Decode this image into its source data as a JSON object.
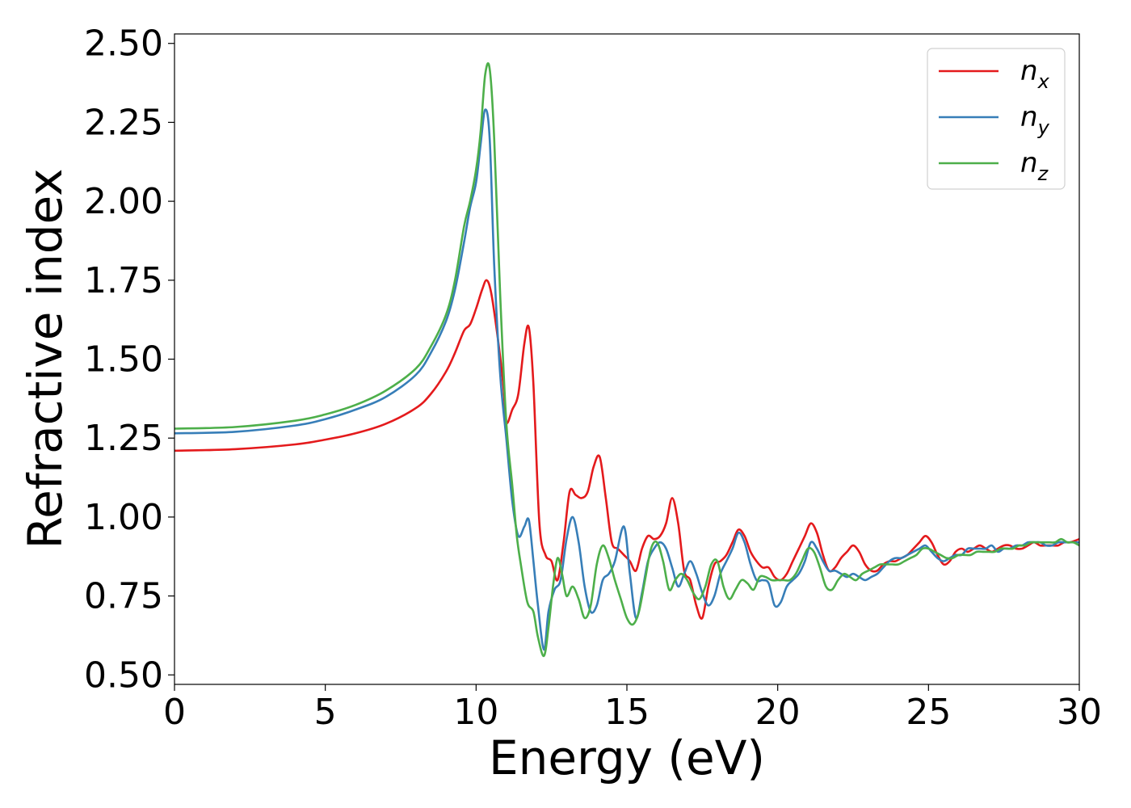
{
  "chart_data": {
    "type": "line",
    "xlabel": "Energy (eV)",
    "ylabel": "Refractive index",
    "xlim": [
      0,
      30
    ],
    "ylim": [
      0.47,
      2.53
    ],
    "xticks": [
      0,
      5,
      10,
      15,
      20,
      25,
      30
    ],
    "xtick_labels": [
      "0",
      "5",
      "10",
      "15",
      "20",
      "25",
      "30"
    ],
    "yticks": [
      0.5,
      0.75,
      1.0,
      1.25,
      1.5,
      1.75,
      2.0,
      2.25,
      2.5
    ],
    "ytick_labels": [
      "0.50",
      "0.75",
      "1.00",
      "1.25",
      "1.50",
      "1.75",
      "2.00",
      "2.25",
      "2.50"
    ],
    "grid": false,
    "legend_position": "top-right",
    "series": [
      {
        "name": "n_x",
        "legend_base": "n",
        "legend_sub": "x",
        "color": "#e41a1c",
        "x": [
          0,
          2,
          4,
          5,
          6,
          7,
          8,
          8.5,
          9,
          9.3,
          9.6,
          9.8,
          10.0,
          10.2,
          10.35,
          10.5,
          10.7,
          10.9,
          11.0,
          11.2,
          11.4,
          11.6,
          11.75,
          11.9,
          12.1,
          12.3,
          12.5,
          12.7,
          12.9,
          13.1,
          13.3,
          13.5,
          13.7,
          13.9,
          14.1,
          14.3,
          14.5,
          14.7,
          14.9,
          15.1,
          15.3,
          15.5,
          15.7,
          15.9,
          16.1,
          16.3,
          16.5,
          16.7,
          16.9,
          17.1,
          17.3,
          17.5,
          17.7,
          17.9,
          18.1,
          18.3,
          18.5,
          18.7,
          18.9,
          19.1,
          19.3,
          19.5,
          19.7,
          19.9,
          20.1,
          20.3,
          20.5,
          20.7,
          20.9,
          21.1,
          21.3,
          21.5,
          21.7,
          21.9,
          22.1,
          22.3,
          22.5,
          22.7,
          22.9,
          23.1,
          23.3,
          23.5,
          23.7,
          23.9,
          24.1,
          24.3,
          24.5,
          24.7,
          24.9,
          25.1,
          25.3,
          25.5,
          25.7,
          25.9,
          26.1,
          26.3,
          26.5,
          26.7,
          26.9,
          27.1,
          27.3,
          27.5,
          27.7,
          27.9,
          28.1,
          28.3,
          28.5,
          28.7,
          28.9,
          29.1,
          29.3,
          29.5,
          29.7,
          30
        ],
        "y": [
          1.21,
          1.215,
          1.23,
          1.245,
          1.265,
          1.295,
          1.345,
          1.39,
          1.46,
          1.52,
          1.59,
          1.61,
          1.66,
          1.72,
          1.75,
          1.71,
          1.58,
          1.42,
          1.3,
          1.34,
          1.39,
          1.55,
          1.6,
          1.42,
          0.98,
          0.88,
          0.86,
          0.8,
          0.92,
          1.08,
          1.07,
          1.06,
          1.08,
          1.16,
          1.19,
          1.06,
          0.92,
          0.9,
          0.88,
          0.86,
          0.83,
          0.9,
          0.94,
          0.93,
          0.94,
          0.98,
          1.06,
          0.98,
          0.83,
          0.8,
          0.72,
          0.68,
          0.78,
          0.85,
          0.86,
          0.88,
          0.92,
          0.96,
          0.94,
          0.89,
          0.86,
          0.84,
          0.84,
          0.81,
          0.8,
          0.82,
          0.86,
          0.9,
          0.94,
          0.98,
          0.95,
          0.88,
          0.83,
          0.84,
          0.87,
          0.89,
          0.91,
          0.89,
          0.85,
          0.83,
          0.83,
          0.85,
          0.86,
          0.86,
          0.87,
          0.88,
          0.9,
          0.92,
          0.94,
          0.92,
          0.88,
          0.85,
          0.86,
          0.89,
          0.9,
          0.89,
          0.9,
          0.91,
          0.9,
          0.89,
          0.9,
          0.91,
          0.91,
          0.9,
          0.9,
          0.91,
          0.92,
          0.91,
          0.91,
          0.91,
          0.91,
          0.92,
          0.92,
          0.93
        ]
      },
      {
        "name": "n_y",
        "legend_base": "n",
        "legend_sub": "y",
        "color": "#377eb8",
        "x": [
          0,
          2,
          4,
          5,
          6,
          7,
          8,
          8.5,
          9,
          9.3,
          9.6,
          9.8,
          10.0,
          10.15,
          10.3,
          10.45,
          10.6,
          10.8,
          11.0,
          11.2,
          11.4,
          11.6,
          11.75,
          11.9,
          12.05,
          12.25,
          12.4,
          12.6,
          12.8,
          13.0,
          13.2,
          13.4,
          13.6,
          13.8,
          14.0,
          14.2,
          14.4,
          14.6,
          14.9,
          15.1,
          15.3,
          15.5,
          15.7,
          15.9,
          16.1,
          16.3,
          16.5,
          16.7,
          16.9,
          17.1,
          17.3,
          17.5,
          17.7,
          17.9,
          18.1,
          18.3,
          18.5,
          18.7,
          18.9,
          19.1,
          19.3,
          19.5,
          19.7,
          19.9,
          20.1,
          20.3,
          20.5,
          20.7,
          20.9,
          21.1,
          21.3,
          21.5,
          21.7,
          21.9,
          22.1,
          22.3,
          22.5,
          22.7,
          22.9,
          23.1,
          23.3,
          23.5,
          23.7,
          23.9,
          24.1,
          24.3,
          24.5,
          24.7,
          24.9,
          25.1,
          25.3,
          25.5,
          25.7,
          25.9,
          26.1,
          26.3,
          26.5,
          26.7,
          26.9,
          27.1,
          27.3,
          27.5,
          27.7,
          27.9,
          28.1,
          28.3,
          28.5,
          28.7,
          28.9,
          29.1,
          29.3,
          29.5,
          29.7,
          30
        ],
        "y": [
          1.265,
          1.27,
          1.29,
          1.31,
          1.34,
          1.38,
          1.45,
          1.52,
          1.62,
          1.72,
          1.87,
          1.98,
          2.06,
          2.18,
          2.29,
          2.2,
          1.8,
          1.45,
          1.25,
          1.05,
          0.94,
          0.97,
          0.99,
          0.86,
          0.72,
          0.58,
          0.7,
          0.77,
          0.8,
          0.93,
          1.0,
          0.92,
          0.78,
          0.7,
          0.72,
          0.8,
          0.82,
          0.86,
          0.97,
          0.82,
          0.68,
          0.76,
          0.86,
          0.9,
          0.92,
          0.9,
          0.84,
          0.78,
          0.82,
          0.86,
          0.82,
          0.76,
          0.72,
          0.75,
          0.82,
          0.86,
          0.9,
          0.95,
          0.92,
          0.85,
          0.8,
          0.8,
          0.79,
          0.72,
          0.73,
          0.78,
          0.8,
          0.82,
          0.86,
          0.92,
          0.9,
          0.86,
          0.83,
          0.83,
          0.82,
          0.81,
          0.82,
          0.81,
          0.8,
          0.81,
          0.82,
          0.84,
          0.86,
          0.87,
          0.87,
          0.88,
          0.89,
          0.9,
          0.91,
          0.89,
          0.87,
          0.86,
          0.87,
          0.88,
          0.88,
          0.9,
          0.9,
          0.9,
          0.9,
          0.91,
          0.89,
          0.9,
          0.9,
          0.91,
          0.91,
          0.92,
          0.92,
          0.92,
          0.91,
          0.91,
          0.92,
          0.92,
          0.92,
          0.92
        ]
      },
      {
        "name": "n_z",
        "legend_base": "n",
        "legend_sub": "z",
        "color": "#4daf4a",
        "x": [
          0,
          2,
          4,
          5,
          6,
          7,
          8,
          8.5,
          9,
          9.3,
          9.6,
          9.8,
          10.0,
          10.15,
          10.3,
          10.45,
          10.6,
          10.8,
          11.0,
          11.2,
          11.35,
          11.5,
          11.7,
          11.9,
          12.05,
          12.25,
          12.4,
          12.55,
          12.7,
          12.85,
          13.0,
          13.2,
          13.4,
          13.6,
          13.8,
          14.0,
          14.2,
          14.4,
          14.6,
          14.8,
          15.0,
          15.2,
          15.4,
          15.6,
          15.8,
          16.0,
          16.2,
          16.4,
          16.6,
          16.8,
          17.0,
          17.2,
          17.4,
          17.6,
          17.8,
          18.0,
          18.2,
          18.4,
          18.6,
          18.8,
          19.0,
          19.2,
          19.4,
          19.6,
          19.8,
          20.0,
          20.2,
          20.4,
          20.6,
          20.8,
          21.0,
          21.2,
          21.4,
          21.6,
          21.8,
          22.0,
          22.2,
          22.4,
          22.6,
          22.8,
          23.0,
          23.2,
          23.4,
          23.6,
          23.8,
          24.0,
          24.2,
          24.4,
          24.6,
          24.8,
          25.0,
          25.2,
          25.4,
          25.6,
          25.8,
          26.0,
          26.2,
          26.4,
          26.6,
          26.8,
          27.0,
          27.2,
          27.4,
          27.6,
          27.8,
          28.0,
          28.2,
          28.4,
          28.6,
          28.8,
          29.0,
          29.2,
          29.4,
          29.6,
          29.8,
          30
        ],
        "y": [
          1.28,
          1.285,
          1.305,
          1.325,
          1.355,
          1.4,
          1.47,
          1.54,
          1.64,
          1.75,
          1.92,
          2.0,
          2.1,
          2.22,
          2.4,
          2.42,
          2.2,
          1.7,
          1.3,
          1.1,
          0.94,
          0.84,
          0.73,
          0.7,
          0.62,
          0.56,
          0.65,
          0.78,
          0.87,
          0.82,
          0.75,
          0.78,
          0.74,
          0.68,
          0.72,
          0.85,
          0.91,
          0.87,
          0.8,
          0.74,
          0.68,
          0.66,
          0.7,
          0.8,
          0.9,
          0.92,
          0.86,
          0.77,
          0.8,
          0.82,
          0.8,
          0.76,
          0.74,
          0.78,
          0.85,
          0.86,
          0.78,
          0.74,
          0.77,
          0.8,
          0.79,
          0.77,
          0.81,
          0.81,
          0.8,
          0.8,
          0.8,
          0.8,
          0.82,
          0.86,
          0.9,
          0.89,
          0.84,
          0.78,
          0.77,
          0.8,
          0.82,
          0.81,
          0.8,
          0.82,
          0.83,
          0.84,
          0.85,
          0.85,
          0.85,
          0.85,
          0.86,
          0.87,
          0.88,
          0.9,
          0.9,
          0.89,
          0.88,
          0.87,
          0.87,
          0.88,
          0.88,
          0.88,
          0.89,
          0.89,
          0.89,
          0.89,
          0.9,
          0.9,
          0.9,
          0.91,
          0.91,
          0.92,
          0.92,
          0.92,
          0.92,
          0.92,
          0.93,
          0.92,
          0.92,
          0.91
        ]
      }
    ]
  }
}
